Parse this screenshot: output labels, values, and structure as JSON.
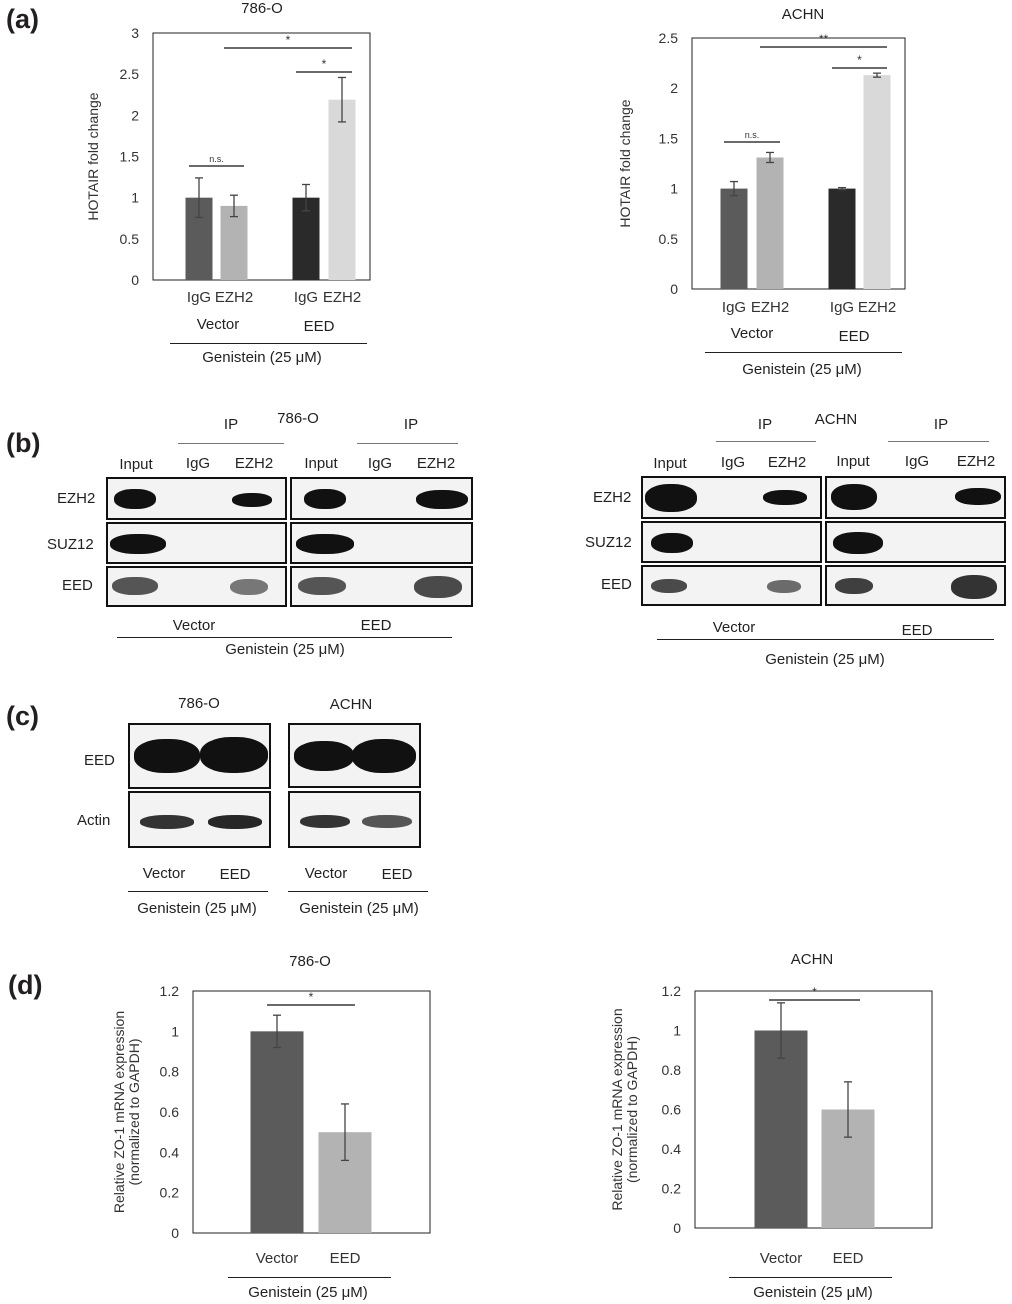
{
  "panels": {
    "a": "(a)",
    "b": "(b)",
    "c": "(c)",
    "d": "(d)"
  },
  "colors": {
    "bar_dark": "#5b5b5b",
    "bar_light": "#b3b3b3",
    "bar_black": "#2a2a2a",
    "bar_pale": "#d9d9d9"
  },
  "common": {
    "treatment": "Genistein (25 μM)",
    "vector": "Vector",
    "eed": "EED",
    "igg": "IgG",
    "ezh2": "EZH2",
    "input": "Input",
    "ip": "IP"
  },
  "chart_data": [
    {
      "id": "a-786O",
      "type": "bar",
      "title": "786-O",
      "ylabel": "HOTAIR fold change",
      "xlabel": "",
      "ylim": [
        0,
        3
      ],
      "yticks": [
        0,
        0.5,
        1,
        1.5,
        2,
        2.5,
        3
      ],
      "categories": [
        "IgG",
        "EZH2",
        "IgG",
        "EZH2"
      ],
      "groups": [
        "Vector",
        "EED"
      ],
      "values": [
        1.0,
        0.9,
        1.0,
        2.19
      ],
      "errors": [
        0.24,
        0.13,
        0.16,
        0.27
      ],
      "significance": [
        {
          "from": 1,
          "to": 0,
          "label": "n.s."
        },
        {
          "from": 3,
          "to": 2,
          "label": "*"
        },
        {
          "from": 1,
          "to": 3,
          "label": "*"
        }
      ],
      "footer": "Genistein (25 μM)",
      "grid": false
    },
    {
      "id": "a-ACHN",
      "type": "bar",
      "title": "ACHN",
      "ylabel": "HOTAIR fold change",
      "xlabel": "",
      "ylim": [
        0,
        2.5
      ],
      "yticks": [
        0,
        0.5,
        1,
        1.5,
        2,
        2.5
      ],
      "categories": [
        "IgG",
        "EZH2",
        "IgG",
        "EZH2"
      ],
      "groups": [
        "Vector",
        "EED"
      ],
      "values": [
        1.0,
        1.31,
        1.0,
        2.13
      ],
      "errors": [
        0.07,
        0.05,
        0.01,
        0.02
      ],
      "significance": [
        {
          "from": 1,
          "to": 0,
          "label": "n.s."
        },
        {
          "from": 3,
          "to": 2,
          "label": "*"
        },
        {
          "from": 1,
          "to": 3,
          "label": "**"
        }
      ],
      "footer": "Genistein (25 μM)",
      "grid": false
    },
    {
      "id": "d-786O",
      "type": "bar",
      "title": "786-O",
      "ylabel": "Relative ZO-1 mRNA expression (normalized to GAPDH)",
      "xlabel": "",
      "ylim": [
        0,
        1.2
      ],
      "yticks": [
        0,
        0.2,
        0.4,
        0.6,
        0.8,
        1,
        1.2
      ],
      "categories": [
        "Vector",
        "EED"
      ],
      "values": [
        1.0,
        0.5
      ],
      "errors": [
        0.08,
        0.14
      ],
      "significance": [
        {
          "from": 0,
          "to": 1,
          "label": "*"
        }
      ],
      "footer": "Genistein (25 μM)",
      "grid": false
    },
    {
      "id": "d-ACHN",
      "type": "bar",
      "title": "ACHN",
      "ylabel": "Relative ZO-1 mRNA expression (normalized to GAPDH)",
      "xlabel": "",
      "ylim": [
        0,
        1.2
      ],
      "yticks": [
        0,
        0.2,
        0.4,
        0.6,
        0.8,
        1,
        1.2
      ],
      "categories": [
        "Vector",
        "EED"
      ],
      "values": [
        1.0,
        0.6
      ],
      "errors": [
        0.14,
        0.14
      ],
      "significance": [
        {
          "from": 0,
          "to": 1,
          "label": "*"
        }
      ],
      "footer": "Genistein (25 μM)",
      "grid": false
    }
  ],
  "blots_b": {
    "cell_lines": [
      "786-O",
      "ACHN"
    ],
    "rows": [
      "EZH2",
      "SUZ12",
      "EED"
    ]
  },
  "blots_c": {
    "cell_lines": [
      "786-O",
      "ACHN"
    ],
    "rows": [
      "EED",
      "Actin"
    ]
  }
}
